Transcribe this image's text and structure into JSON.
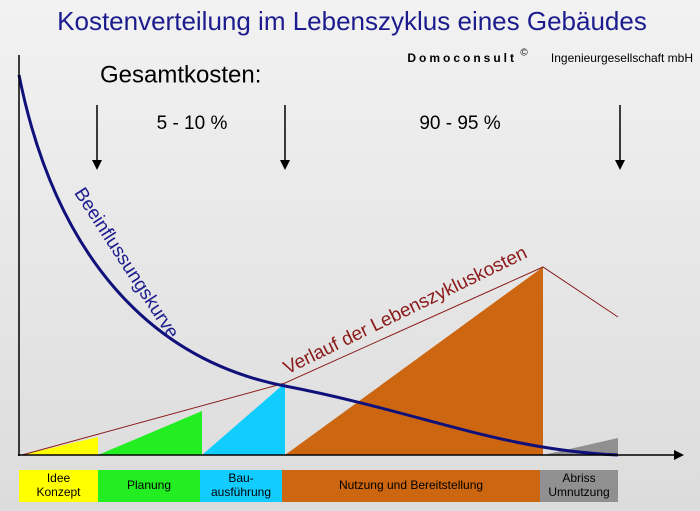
{
  "header": {
    "title": "Kostenverteilung im Lebenszyklus eines Gebäudes",
    "company": "Domoconsult",
    "mark": "©",
    "company_suffix": "Ingenieurgesellschaft mbH"
  },
  "costs": {
    "label": "Gesamtkosten:",
    "early": "5 - 10 %",
    "late": "90 - 95 %"
  },
  "curves": {
    "influence": "Beeinflussungskurve",
    "lifecycle": "Verlauf der Lebenszykluskosten"
  },
  "phases": [
    {
      "lines": [
        "Idee",
        "Konzept"
      ]
    },
    {
      "lines": [
        "Planung"
      ]
    },
    {
      "lines": [
        "Bau-",
        "ausführung"
      ]
    },
    {
      "lines": [
        "Nutzung und Bereitstellung"
      ]
    },
    {
      "lines": [
        "Abriss",
        "Umnutzung"
      ]
    }
  ]
}
